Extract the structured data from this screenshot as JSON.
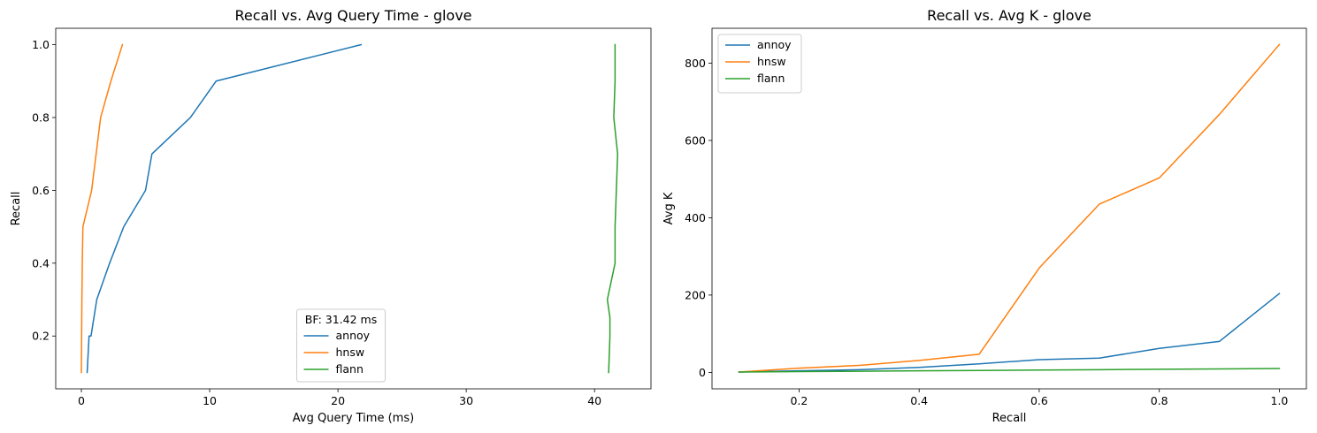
{
  "chart_data": [
    {
      "type": "line",
      "title": "Recall vs. Avg Query Time - glove",
      "xlabel": "Avg Query Time (ms)",
      "ylabel": "Recall",
      "xlim": [
        -2,
        44.4
      ],
      "ylim": [
        0.055,
        1.045
      ],
      "xticks": [
        "0",
        "10",
        "20",
        "30",
        "40"
      ],
      "xtick_values": [
        0,
        10,
        20,
        30,
        40
      ],
      "yticks": [
        "0.2",
        "0.4",
        "0.6",
        "0.8",
        "1.0"
      ],
      "ytick_values": [
        0.2,
        0.4,
        0.6,
        0.8,
        1.0
      ],
      "grid": false,
      "legend": {
        "placement": "lower-center",
        "title": "BF: 31.42 ms"
      },
      "series": [
        {
          "name": "annoy",
          "color": "#1f77b4",
          "x": [
            0.45,
            0.6,
            0.75,
            1.2,
            2.2,
            3.3,
            5.0,
            5.5,
            8.5,
            10.5,
            21.8
          ],
          "y": [
            0.1,
            0.2,
            0.2,
            0.3,
            0.4,
            0.5,
            0.6,
            0.7,
            0.8,
            0.9,
            1.0
          ]
        },
        {
          "name": "hnsw",
          "color": "#ff7f0e",
          "x": [
            0.0,
            0.02,
            0.04,
            0.07,
            0.12,
            0.8,
            1.5,
            2.3,
            3.2
          ],
          "y": [
            0.1,
            0.2,
            0.3,
            0.4,
            0.5,
            0.6,
            0.8,
            0.9,
            1.0
          ]
        },
        {
          "name": "flann",
          "color": "#2ca02c",
          "x": [
            41.1,
            41.2,
            41.2,
            41.0,
            41.6,
            41.6,
            41.7,
            41.8,
            41.5,
            41.6,
            41.6
          ],
          "y": [
            0.1,
            0.2,
            0.25,
            0.3,
            0.4,
            0.5,
            0.6,
            0.7,
            0.8,
            0.9,
            1.0
          ]
        }
      ]
    },
    {
      "type": "line",
      "title": "Recall vs. Avg K - glove",
      "xlabel": "Recall",
      "ylabel": "Avg K",
      "xlim": [
        0.055,
        1.045
      ],
      "ylim": [
        -42.5,
        890
      ],
      "xticks": [
        "0.2",
        "0.4",
        "0.6",
        "0.8",
        "1.0"
      ],
      "xtick_values": [
        0.2,
        0.4,
        0.6,
        0.8,
        1.0
      ],
      "yticks": [
        "0",
        "200",
        "400",
        "600",
        "800"
      ],
      "ytick_values": [
        0,
        200,
        400,
        600,
        800
      ],
      "grid": false,
      "legend": {
        "placement": "upper-left"
      },
      "series": [
        {
          "name": "annoy",
          "color": "#1f77b4",
          "x": [
            0.1,
            0.2,
            0.3,
            0.4,
            0.5,
            0.6,
            0.7,
            0.8,
            0.9,
            1.0
          ],
          "y": [
            1,
            4,
            7,
            13,
            22,
            33,
            37,
            62,
            80,
            204
          ]
        },
        {
          "name": "hnsw",
          "color": "#ff7f0e",
          "x": [
            0.1,
            0.2,
            0.3,
            0.4,
            0.5,
            0.6,
            0.7,
            0.8,
            0.9,
            1.0
          ],
          "y": [
            1,
            11,
            18,
            31,
            47,
            270,
            435,
            503,
            667,
            848
          ]
        },
        {
          "name": "flann",
          "color": "#2ca02c",
          "x": [
            0.1,
            0.2,
            0.3,
            0.4,
            0.5,
            0.6,
            0.7,
            0.8,
            0.9,
            1.0
          ],
          "y": [
            1,
            2,
            3,
            4,
            5,
            6,
            7,
            8,
            9,
            10
          ]
        }
      ]
    }
  ]
}
